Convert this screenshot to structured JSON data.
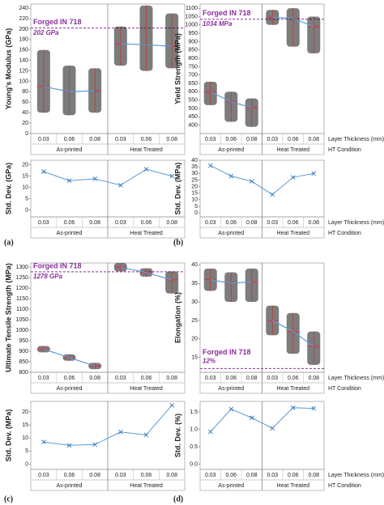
{
  "chart_data": [
    {
      "type": "strip",
      "panel": "(a)",
      "ylabel": "Young's Modulus (GPa)",
      "categories": [
        "0.03",
        "0.06",
        "0.08",
        "0.03",
        "0.06",
        "0.08"
      ],
      "groups": [
        "As-printed",
        "Heat Treated"
      ],
      "values": [
        90,
        80,
        82,
        172,
        170,
        167
      ],
      "min": [
        40,
        35,
        40,
        130,
        120,
        125
      ],
      "max": [
        160,
        130,
        125,
        205,
        245,
        230
      ],
      "ylim": [
        0,
        248
      ],
      "yticks": [
        0,
        20,
        40,
        60,
        80,
        100,
        120,
        140,
        160,
        180,
        200,
        220,
        240
      ],
      "reference": {
        "value": 202,
        "label": "Forged IN 718",
        "value_label": "202 GPa"
      }
    },
    {
      "type": "line",
      "ylabel": "Std. Dev. (GPa)",
      "categories": [
        "0.03",
        "0.06",
        "0.08",
        "0.03",
        "0.06",
        "0.08"
      ],
      "groups": [
        "As-printed",
        "Heat Treated"
      ],
      "values": [
        17,
        13,
        13.8,
        11,
        18,
        15
      ],
      "ylim": [
        -3,
        22
      ],
      "yticks": [
        0,
        5,
        10,
        15,
        20
      ]
    },
    {
      "type": "strip",
      "panel": "(b)",
      "ylabel": "Yield Strength (MPa)",
      "categories": [
        "0.03",
        "0.06",
        "0.08",
        "0.03",
        "0.06",
        "0.08"
      ],
      "groups": [
        "As-printed",
        "Heat Treated"
      ],
      "values": [
        600,
        540,
        505,
        1045,
        1040,
        990
      ],
      "min": [
        520,
        420,
        390,
        1000,
        870,
        830
      ],
      "max": [
        660,
        600,
        560,
        1090,
        1100,
        1050
      ],
      "ylim": [
        350,
        1125
      ],
      "yticks": [
        400,
        450,
        500,
        550,
        600,
        650,
        700,
        750,
        800,
        850,
        900,
        950,
        1000,
        1050,
        1100
      ],
      "reference": {
        "value": 1034,
        "label": "Forged IN 718",
        "value_label": "1034 MPa"
      },
      "xlabel": "Layer Thickness (mm)",
      "group_label": "HT Condition"
    },
    {
      "type": "line",
      "ylabel": "Std. Dev. (MPa)",
      "categories": [
        "0.03",
        "0.06",
        "0.08",
        "0.03",
        "0.06",
        "0.08"
      ],
      "groups": [
        "As-printed",
        "Heat Treated"
      ],
      "values": [
        36,
        28,
        24,
        14,
        27,
        30
      ],
      "ylim": [
        -3,
        40
      ],
      "yticks": [
        0,
        5,
        10,
        15,
        20,
        25,
        30,
        35,
        40
      ],
      "xlabel": "Layer Thickness (mm)",
      "group_label": "HT Condition"
    },
    {
      "type": "strip",
      "panel": "(c)",
      "ylabel": "Ultimate Tensile Strength (MPa)",
      "categories": [
        "0.03",
        "0.06",
        "0.08",
        "0.03",
        "0.06",
        "0.08"
      ],
      "groups": [
        "As-printed",
        "Heat Treated"
      ],
      "values": [
        910,
        870,
        830,
        1300,
        1275,
        1240
      ],
      "min": [
        895,
        855,
        815,
        1280,
        1255,
        1175
      ],
      "max": [
        925,
        885,
        845,
        1320,
        1295,
        1280
      ],
      "ylim": [
        800,
        1320
      ],
      "yticks": [
        800,
        850,
        900,
        950,
        1000,
        1050,
        1100,
        1150,
        1200,
        1250,
        1300
      ],
      "reference": {
        "value": 1278,
        "label": "Forged IN 718",
        "value_label": "1278 GPa"
      }
    },
    {
      "type": "line",
      "ylabel": "Std. Dev. (MPa)",
      "categories": [
        "0.03",
        "0.06",
        "0.08",
        "0.03",
        "0.06",
        "0.08"
      ],
      "groups": [
        "As-printed",
        "Heat Treated"
      ],
      "values": [
        8.5,
        7.2,
        7.5,
        12.3,
        11.2,
        22.5
      ],
      "ylim": [
        -2,
        24
      ],
      "yticks": [
        0,
        5,
        10,
        15,
        20
      ]
    },
    {
      "type": "strip",
      "panel": "(d)",
      "ylabel": "Elongation (%)",
      "categories": [
        "0.03",
        "0.06",
        "0.08",
        "0.03",
        "0.06",
        "0.08"
      ],
      "groups": [
        "As-printed",
        "Heat Treated"
      ],
      "values": [
        36,
        35,
        35.5,
        25,
        22,
        18
      ],
      "min": [
        33,
        30,
        30,
        21,
        16,
        13
      ],
      "max": [
        39,
        38,
        39,
        29,
        27,
        22
      ],
      "ylim": [
        11,
        40.5
      ],
      "yticks": [
        15,
        20,
        25,
        30,
        35,
        40
      ],
      "reference": {
        "value": 12,
        "label": "Forged IN 718",
        "value_label": "12%"
      },
      "xlabel": "Layer Thickness (mm)",
      "group_label": "HT Condition"
    },
    {
      "type": "line",
      "ylabel": "Std. Dev. (%)",
      "categories": [
        "0.03",
        "0.06",
        "0.08",
        "0.03",
        "0.06",
        "0.08"
      ],
      "groups": [
        "As-printed",
        "Heat Treated"
      ],
      "values": [
        0.93,
        1.58,
        1.33,
        1.03,
        1.62,
        1.6
      ],
      "ylim": [
        -0.15,
        1.8
      ],
      "yticks": [
        {
          "value": 0,
          "label": "0.0"
        },
        0.5,
        {
          "value": 1,
          "label": "1.0"
        },
        1.5
      ],
      "xlabel": "Layer Thickness (mm)",
      "group_label": "HT Condition"
    }
  ]
}
